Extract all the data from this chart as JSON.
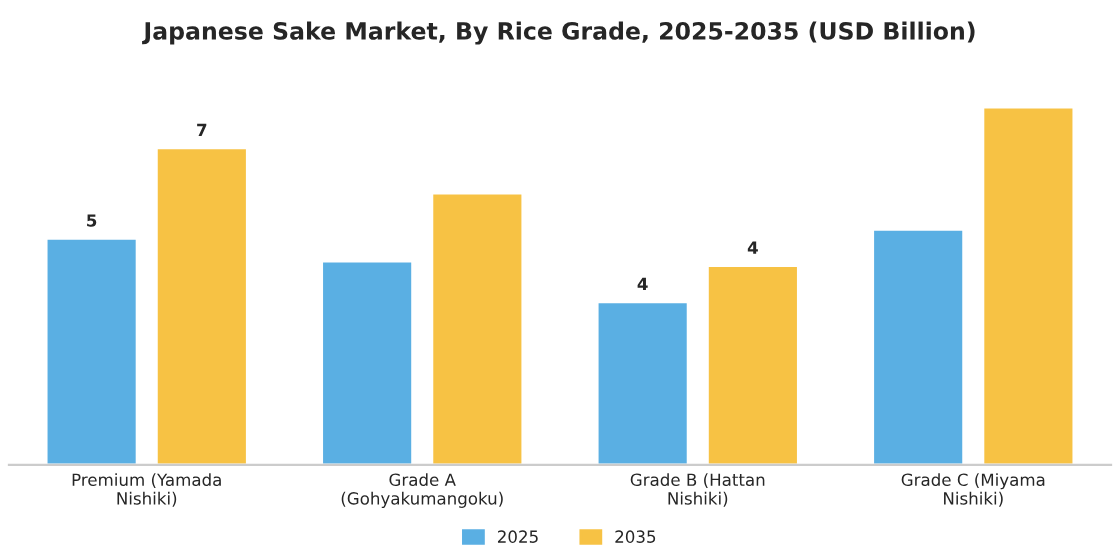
{
  "chart_data": {
    "type": "bar",
    "title": "Japanese Sake Market, By Rice Grade, 2025-2035 (USD Billion)",
    "categories": [
      "Premium (Yamada\nNishiki)",
      "Grade A\n(Gohyakumangoku)",
      "Grade B (Hattan\nNishiki)",
      "Grade C (Miyama\nNishiki)"
    ],
    "series": [
      {
        "name": "2025",
        "color": "#5aafe3",
        "values": [
          5.0,
          4.5,
          3.6,
          5.2
        ],
        "value_labels": [
          "5",
          null,
          "4",
          null
        ]
      },
      {
        "name": "2035",
        "color": "#f7c244",
        "values": [
          7.0,
          6.0,
          4.4,
          7.9
        ],
        "value_labels": [
          "7",
          null,
          "4",
          null
        ]
      }
    ],
    "legend": "bottom",
    "grid": false
  }
}
